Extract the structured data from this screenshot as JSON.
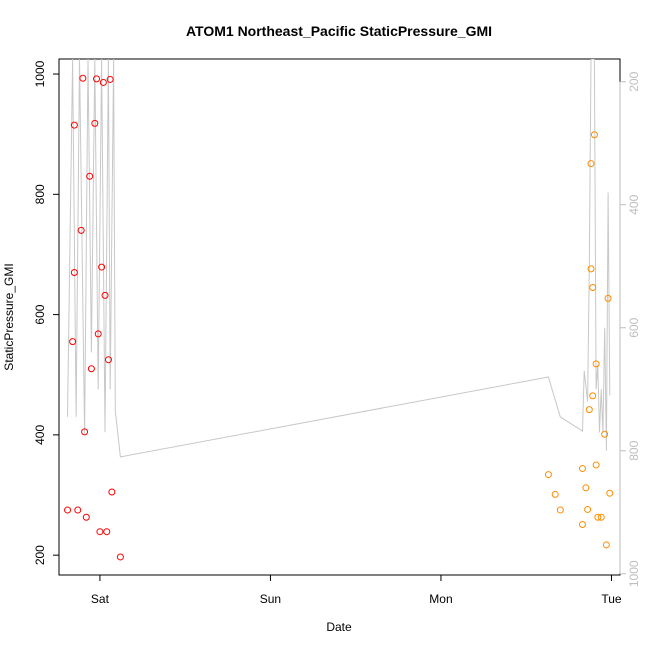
{
  "chart_data": {
    "type": "scatter",
    "title": "ATOM1 Northeast_Pacific StaticPressure_GMI",
    "xlabel": "Date",
    "ylabel": "StaticPressure_GMI",
    "x_axis": {
      "range": [
        0.76,
        4.05
      ],
      "ticks": [
        {
          "value": 1,
          "label": "Sat"
        },
        {
          "value": 2,
          "label": "Sun"
        },
        {
          "value": 3,
          "label": "Mon"
        },
        {
          "value": 4,
          "label": "Tue"
        }
      ]
    },
    "y_axis_left": {
      "range": [
        167,
        1025
      ],
      "ticks": [
        200,
        400,
        600,
        800,
        1000
      ]
    },
    "y_axis_right": {
      "range": [
        1002,
        163
      ],
      "reversed": true,
      "ticks": [
        200,
        400,
        600,
        800,
        1000
      ]
    },
    "grid": false,
    "series": [
      {
        "color": "#ff0000",
        "marker": "open-circle",
        "points": [
          {
            "x": 0.81,
            "y": 275
          },
          {
            "x": 0.84,
            "y": 555
          },
          {
            "x": 0.85,
            "y": 915
          },
          {
            "x": 0.85,
            "y": 670
          },
          {
            "x": 0.87,
            "y": 275
          },
          {
            "x": 0.89,
            "y": 740
          },
          {
            "x": 0.9,
            "y": 993
          },
          {
            "x": 0.91,
            "y": 405
          },
          {
            "x": 0.92,
            "y": 263
          },
          {
            "x": 0.94,
            "y": 830
          },
          {
            "x": 0.95,
            "y": 510
          },
          {
            "x": 0.97,
            "y": 918
          },
          {
            "x": 0.98,
            "y": 992
          },
          {
            "x": 0.99,
            "y": 568
          },
          {
            "x": 1.0,
            "y": 239
          },
          {
            "x": 1.01,
            "y": 679
          },
          {
            "x": 1.02,
            "y": 986
          },
          {
            "x": 1.03,
            "y": 632
          },
          {
            "x": 1.04,
            "y": 239
          },
          {
            "x": 1.05,
            "y": 525
          },
          {
            "x": 1.06,
            "y": 991
          },
          {
            "x": 1.07,
            "y": 305
          },
          {
            "x": 1.12,
            "y": 197
          }
        ]
      },
      {
        "color": "#ff8c00",
        "marker": "open-circle",
        "points": [
          {
            "x": 3.63,
            "y": 334
          },
          {
            "x": 3.67,
            "y": 301
          },
          {
            "x": 3.7,
            "y": 275
          },
          {
            "x": 3.83,
            "y": 251
          },
          {
            "x": 3.83,
            "y": 344
          },
          {
            "x": 3.85,
            "y": 312
          },
          {
            "x": 3.86,
            "y": 276
          },
          {
            "x": 3.87,
            "y": 442
          },
          {
            "x": 3.88,
            "y": 851
          },
          {
            "x": 3.88,
            "y": 676
          },
          {
            "x": 3.89,
            "y": 465
          },
          {
            "x": 3.89,
            "y": 645
          },
          {
            "x": 3.9,
            "y": 899
          },
          {
            "x": 3.91,
            "y": 518
          },
          {
            "x": 3.91,
            "y": 350
          },
          {
            "x": 3.92,
            "y": 263
          },
          {
            "x": 3.94,
            "y": 263
          },
          {
            "x": 3.96,
            "y": 401
          },
          {
            "x": 3.97,
            "y": 217
          },
          {
            "x": 3.98,
            "y": 627
          },
          {
            "x": 3.99,
            "y": 303
          }
        ]
      },
      {
        "color": "#c8c8c8",
        "marker": "line",
        "axis": "right",
        "points": [
          {
            "x": 0.81,
            "y": 745
          },
          {
            "x": 0.84,
            "y": 163
          },
          {
            "x": 0.86,
            "y": 745
          },
          {
            "x": 0.88,
            "y": 163
          },
          {
            "x": 0.91,
            "y": 772
          },
          {
            "x": 0.93,
            "y": 163
          },
          {
            "x": 0.95,
            "y": 640
          },
          {
            "x": 0.97,
            "y": 163
          },
          {
            "x": 0.99,
            "y": 700
          },
          {
            "x": 1.01,
            "y": 163
          },
          {
            "x": 1.03,
            "y": 770
          },
          {
            "x": 1.05,
            "y": 163
          },
          {
            "x": 1.06,
            "y": 700
          },
          {
            "x": 1.08,
            "y": 163
          },
          {
            "x": 1.09,
            "y": 735
          },
          {
            "x": 1.12,
            "y": 810
          },
          {
            "x": 3.63,
            "y": 680
          },
          {
            "x": 3.7,
            "y": 745
          },
          {
            "x": 3.83,
            "y": 768
          },
          {
            "x": 3.84,
            "y": 670
          },
          {
            "x": 3.86,
            "y": 720
          },
          {
            "x": 3.87,
            "y": 500
          },
          {
            "x": 3.88,
            "y": 163
          },
          {
            "x": 3.9,
            "y": 163
          },
          {
            "x": 3.91,
            "y": 700
          },
          {
            "x": 3.92,
            "y": 660
          },
          {
            "x": 3.93,
            "y": 770
          },
          {
            "x": 3.94,
            "y": 700
          },
          {
            "x": 3.95,
            "y": 770
          },
          {
            "x": 3.96,
            "y": 600
          },
          {
            "x": 3.97,
            "y": 800
          },
          {
            "x": 3.98,
            "y": 380
          },
          {
            "x": 3.99,
            "y": 710
          }
        ]
      }
    ]
  },
  "colors": {
    "axis": "#000000",
    "right_axis": "#bebebe",
    "background": "#ffffff"
  }
}
